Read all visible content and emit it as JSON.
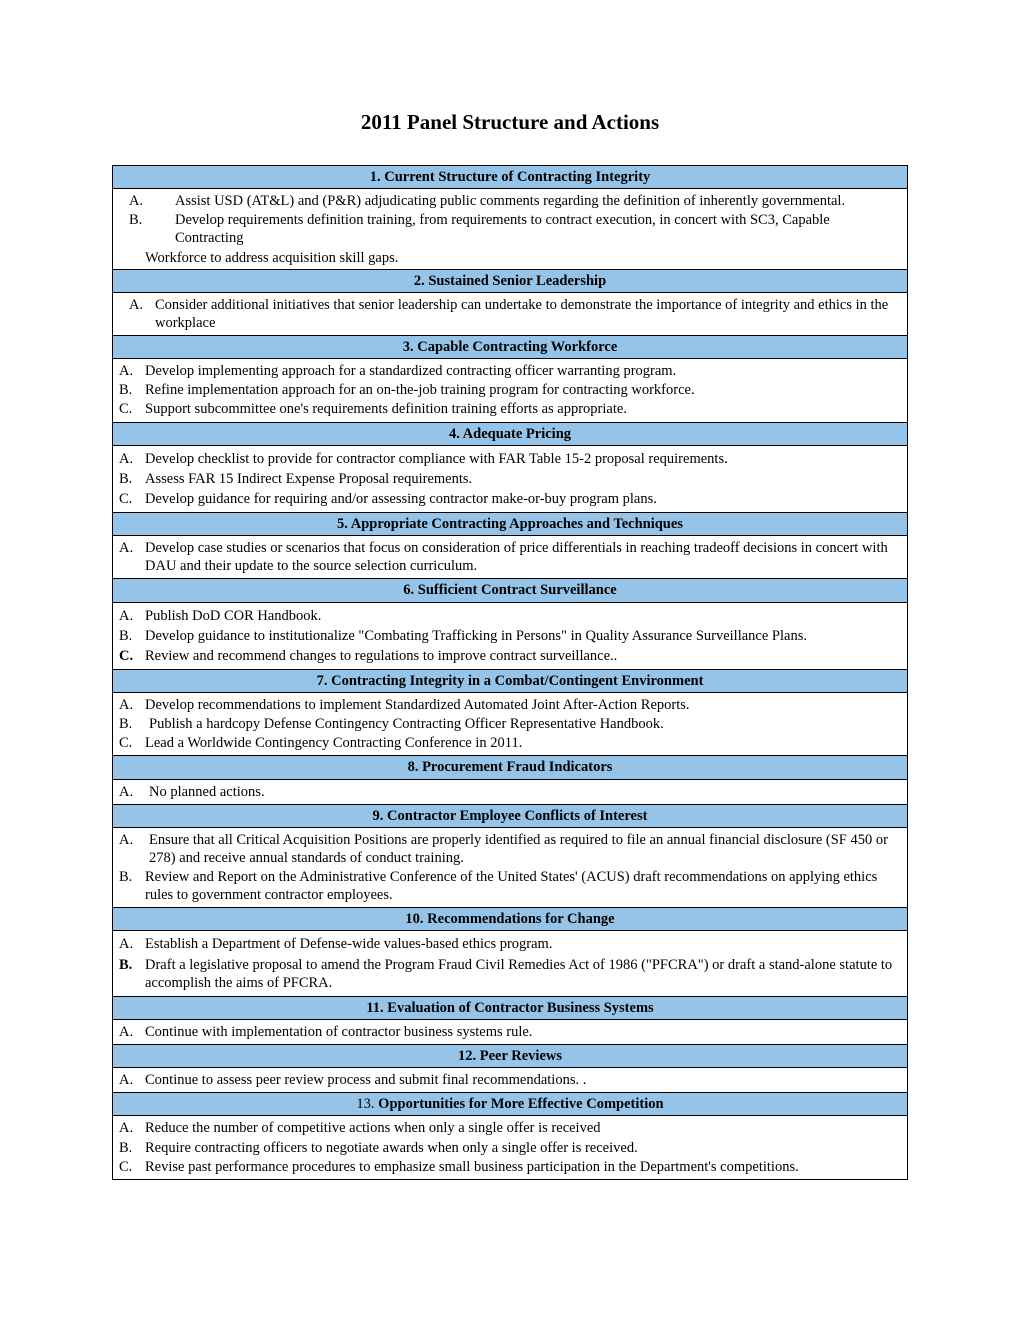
{
  "title": "2011 Panel Structure and Actions",
  "colors": {
    "header_bg": "#95c4e8",
    "border": "#000000",
    "page_bg": "#ffffff"
  },
  "sections": [
    {
      "heading": "1.  Current Structure of Contracting Integrity",
      "style": "wide_indent",
      "items": [
        {
          "label": "A.",
          "text": "Assist USD (AT&L) and (P&R) adjudicating public comments regarding the definition of inherently governmental."
        },
        {
          "label": "B.",
          "text": "Develop requirements definition training, from requirements to contract execution, in concert with SC3, Capable Contracting",
          "cont": "Workforce to address acquisition skill gaps."
        }
      ]
    },
    {
      "heading": "2.  Sustained Senior Leadership",
      "style": "std_indent",
      "items": [
        {
          "label": "A.",
          "text": "Consider additional initiatives that senior leadership can undertake to demonstrate the importance of integrity and ethics in the workplace",
          "wrap": true
        }
      ]
    },
    {
      "heading": "3.  Capable Contracting Workforce",
      "style": "tight",
      "items": [
        {
          "label": "A.",
          "text": "Develop implementing approach for a standardized contracting officer warranting program."
        },
        {
          "label": "B.",
          "text": "Refine implementation approach for an on-the-job training program for contracting workforce."
        },
        {
          "label": "C.",
          "text": "Support subcommittee one's requirements definition training efforts as appropriate."
        }
      ]
    },
    {
      "heading": "4.  Adequate Pricing",
      "style": "spaced",
      "items": [
        {
          "label": "A.",
          "text": "Develop checklist to provide for contractor compliance with FAR Table 15-2 proposal requirements."
        },
        {
          "label": "B.",
          "text": "Assess FAR 15 Indirect Expense Proposal requirements."
        },
        {
          "label": "C.",
          "text": "Develop guidance for requiring and/or assessing contractor make-or-buy program plans."
        }
      ]
    },
    {
      "heading": "5.  Appropriate Contracting Approaches and Techniques",
      "style": "noindent_wrap",
      "items": [
        {
          "label": "A.",
          "text": "Develop case studies or scenarios that focus on consideration of price differentials in reaching tradeoff decisions in concert with DAU and their update to the source selection curriculum."
        }
      ]
    },
    {
      "heading": "6.  Sufficient Contract Surveillance",
      "style": "spaced",
      "items": [
        {
          "label": "A.",
          "text": "Publish DoD COR Handbook."
        },
        {
          "label": "B.",
          "text": "Develop guidance to institutionalize \"Combating Trafficking in Persons\" in Quality Assurance Surveillance Plans."
        },
        {
          "label": "C.",
          "text": "Review and recommend changes to regulations to improve contract surveillance..",
          "bold_label": true
        }
      ]
    },
    {
      "heading": "7.  Contracting Integrity in a Combat/Contingent Environment",
      "style": "spaced_mix",
      "items": [
        {
          "label": "A.",
          "text": "Develop recommendations to implement Standardized Automated Joint After-Action Reports."
        },
        {
          "label": "B.",
          "text": "Publish a hardcopy Defense Contingency Contracting Officer Representative Handbook.",
          "extra_pad": true
        },
        {
          "label": "C.",
          "text": "Lead a Worldwide Contingency Contracting Conference in 2011."
        }
      ]
    },
    {
      "heading": "8.  Procurement Fraud Indicators",
      "style": "spaced_mix",
      "items": [
        {
          "label": "A.",
          "text": "No planned actions.",
          "extra_pad": true
        }
      ]
    },
    {
      "heading": "9.  Contractor Employee Conflicts of Interest",
      "style": "spaced_mix",
      "items": [
        {
          "label": "A.",
          "text": "Ensure that all Critical Acquisition Positions are properly identified as required to file an annual financial disclosure (SF 450 or 278) and receive annual standards of conduct training.",
          "extra_pad": true
        },
        {
          "label": "B.",
          "text": "Review and Report on the Administrative Conference of the United States' (ACUS) draft recommendations on applying ethics rules to government contractor employees."
        }
      ]
    },
    {
      "heading": "10.  Recommendations for Change",
      "style": "spaced",
      "items": [
        {
          "label": "A.",
          "text": "Establish a Department of Defense-wide values-based ethics program."
        },
        {
          "label": "B.",
          "text": "Draft a legislative proposal to amend the Program Fraud Civil Remedies Act of 1986 (\"PFCRA\") or draft a stand-alone statute to accomplish the aims of PFCRA.",
          "bold_label": true
        }
      ]
    },
    {
      "heading": "11.  Evaluation of Contractor Business Systems",
      "style": "tight",
      "items": [
        {
          "label": "A.",
          "text": "Continue with implementation of contractor business systems rule."
        }
      ]
    },
    {
      "heading": "12.  Peer Reviews",
      "style": "tight",
      "items": [
        {
          "label": "A.",
          "text": "Continue to assess peer review process and submit final recommendations.  ."
        }
      ]
    },
    {
      "heading_prefix": "13.  ",
      "heading_bold": "Opportunities for More Effective Competition",
      "style": "tight",
      "items": [
        {
          "label": "A.",
          "text": "Reduce the number of competitive actions when only a single offer is received"
        },
        {
          "label": "B.",
          "text": "Require contracting officers to negotiate awards when only a single offer is received."
        },
        {
          "label": "C.",
          "text": "Revise past performance procedures to emphasize small business participation in the Department's competitions."
        }
      ]
    }
  ]
}
